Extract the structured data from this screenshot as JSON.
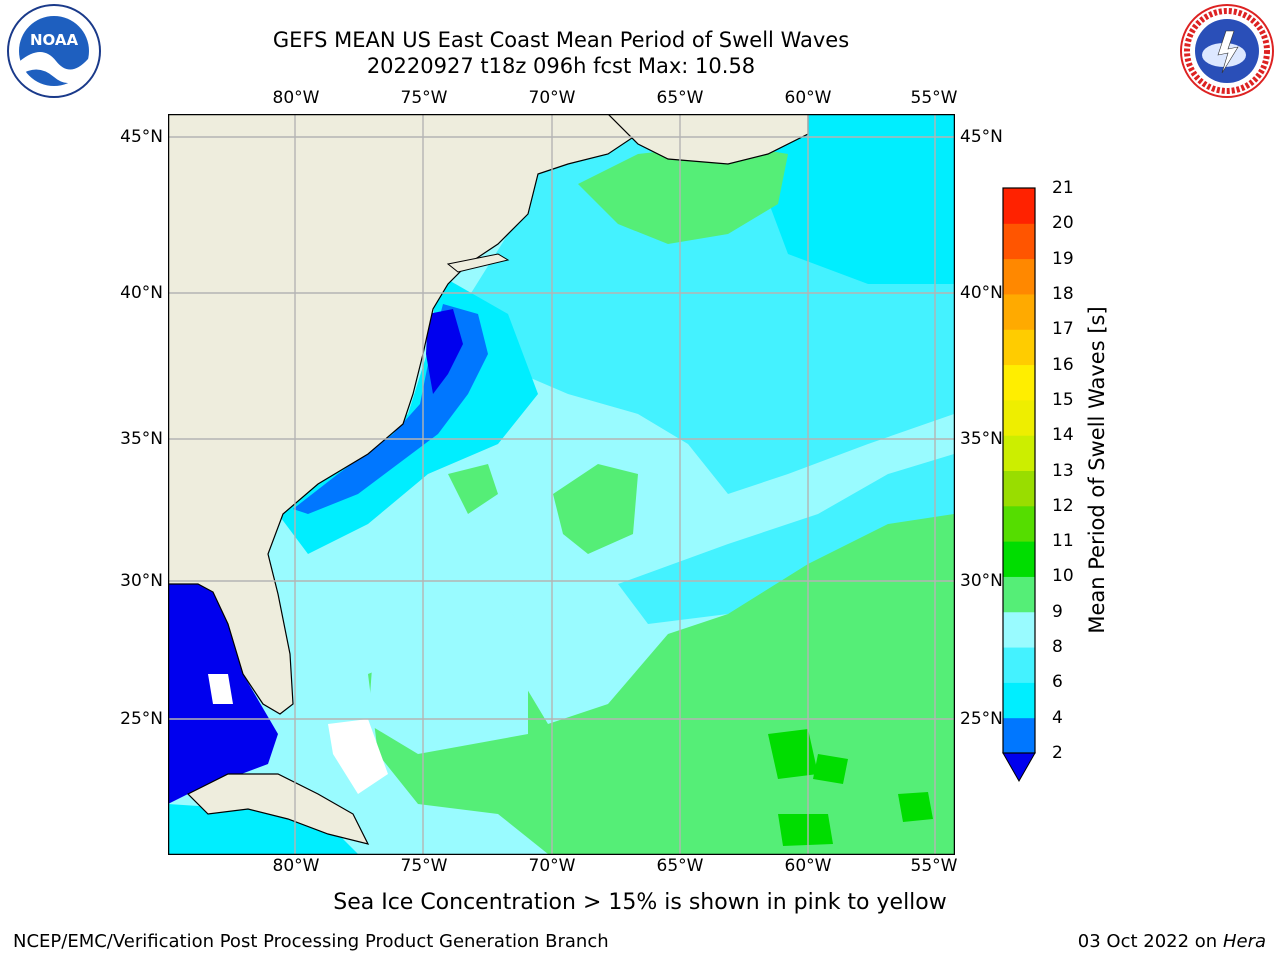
{
  "title": {
    "line1": "GEFS MEAN US East Coast Mean Period of Swell Waves",
    "line2": "20220927 t18z 096h fcst   Max: 10.58"
  },
  "logos": {
    "left": "NOAA",
    "right": "NATIONAL WEATHER SERVICE"
  },
  "map": {
    "lon_labels": [
      "80°W",
      "75°W",
      "70°W",
      "65°W",
      "60°W",
      "55°W"
    ],
    "lat_labels": [
      "45°N",
      "40°N",
      "35°N",
      "30°N",
      "25°N"
    ],
    "colors": {
      "land": "#eeeddd",
      "deep_blue": "#0000ee",
      "blue": "#0077ff",
      "cyan": "#00eeff",
      "light_cyan": "#44f2ff",
      "pale_cyan": "#99fbff",
      "green": "#55ee77",
      "bright_green": "#00dd00",
      "grid": "#b4b4b4"
    }
  },
  "colorbar": {
    "label": "Mean Period of Swell Waves [s]",
    "ticks": [
      "2",
      "4",
      "6",
      "8",
      "9",
      "10",
      "11",
      "12",
      "13",
      "14",
      "15",
      "16",
      "17",
      "18",
      "19",
      "20",
      "21"
    ],
    "colors": [
      "#0000ee",
      "#0077ff",
      "#00eeff",
      "#44f2ff",
      "#99fbff",
      "#55ee77",
      "#00dd00",
      "#55dd00",
      "#99dd00",
      "#ccee00",
      "#eeee00",
      "#ffee00",
      "#ffcc00",
      "#ffaa00",
      "#ff8800",
      "#ff5500",
      "#ff2200",
      "#ff0000"
    ],
    "under_color": "#0000ee"
  },
  "caption": "Sea Ice Concentration > 15% is shown in pink to yellow",
  "footer": {
    "left": "NCEP/EMC/Verification Post Processing Product Generation Branch",
    "right_prefix": "03 Oct 2022 on ",
    "right_italic": "Hera"
  }
}
